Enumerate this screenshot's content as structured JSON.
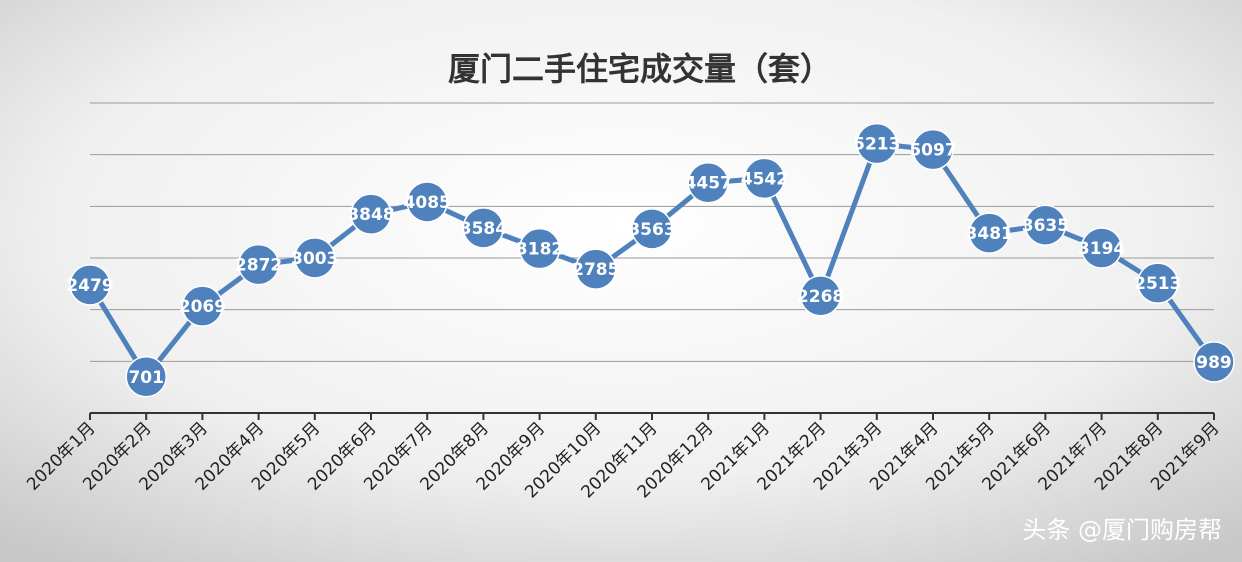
{
  "chart_data": {
    "type": "line",
    "title": "厦门二手住宅成交量（套）",
    "categories": [
      "2020年1月",
      "2020年2月",
      "2020年3月",
      "2020年4月",
      "2020年5月",
      "2020年6月",
      "2020年7月",
      "2020年8月",
      "2020年9月",
      "2020年10月",
      "2020年11月",
      "2020年12月",
      "2021年1月",
      "2021年2月",
      "2021年3月",
      "2021年4月",
      "2021年5月",
      "2021年6月",
      "2021年7月",
      "2021年8月",
      "2021年9月"
    ],
    "values": [
      2479,
      701,
      2069,
      2872,
      3003,
      3848,
      4085,
      3584,
      3182,
      2785,
      3563,
      4457,
      4542,
      2268,
      5213,
      5097,
      3481,
      3635,
      3194,
      2513,
      989
    ],
    "color": "#4f81bd",
    "ylim": [
      0,
      6000
    ],
    "yticks": [
      1000,
      2000,
      3000,
      4000,
      5000,
      6000
    ],
    "grid": true,
    "watermark": "头条 @厦门购房帮"
  }
}
